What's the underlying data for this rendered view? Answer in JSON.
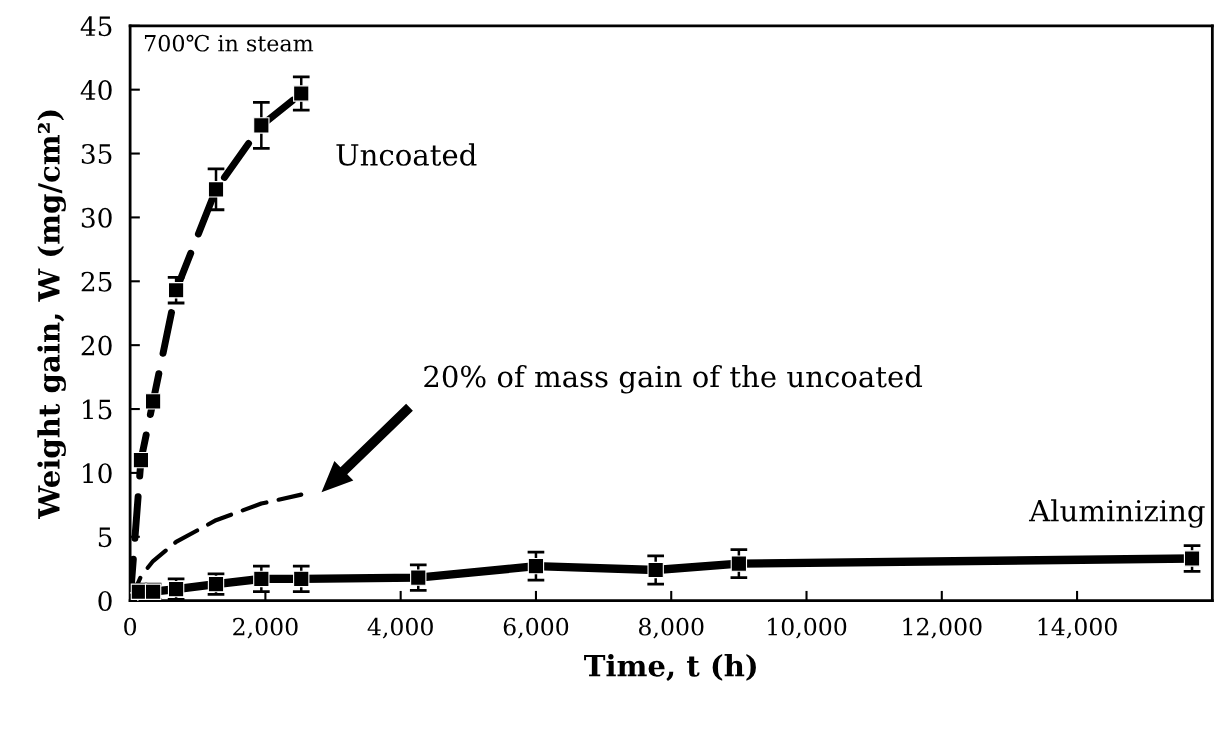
{
  "chart_data": {
    "type": "line",
    "xlabel": "Time, t (h)",
    "ylabel": "Weight gain, W (mg/cm²)",
    "xlim": [
      0,
      16000
    ],
    "ylim": [
      0,
      45
    ],
    "xticks": [
      0,
      {
        "value": 2000,
        "label": "2,000"
      },
      {
        "value": 4000,
        "label": "4,000"
      },
      {
        "value": 6000,
        "label": "6,000"
      },
      {
        "value": 8000,
        "label": "8,000"
      },
      {
        "value": 10000,
        "label": "10,000"
      },
      {
        "value": 12000,
        "label": "12,000"
      },
      {
        "value": 14000,
        "label": "14,000"
      }
    ],
    "yticks": [
      0,
      5,
      10,
      15,
      20,
      25,
      30,
      35,
      40,
      45
    ],
    "grid": false,
    "legend": false,
    "annotations": [
      "700℃ in steam",
      "20% of mass gain of the uncoated"
    ],
    "series": [
      {
        "name": "Uncoated",
        "color": "#000000",
        "line_style": "dashed",
        "marker": "square",
        "x": [
          0,
          160,
          340,
          680,
          1270,
          1940,
          2530
        ],
        "values": [
          0,
          11.0,
          15.6,
          24.3,
          32.2,
          37.2,
          39.7
        ],
        "errors": [
          null,
          null,
          null,
          1.0,
          1.6,
          1.8,
          1.3
        ]
      },
      {
        "color": "#000000",
        "line_style": "dashed",
        "marker": "none",
        "x": [
          0,
          160,
          340,
          680,
          1270,
          1940,
          2530
        ],
        "values": [
          0,
          1.9,
          3.1,
          4.6,
          6.3,
          7.6,
          8.3
        ]
      },
      {
        "name": "Aluminizing",
        "color": "#000000",
        "line_style": "solid",
        "marker": "square",
        "x": [
          0,
          130,
          340,
          680,
          1270,
          1940,
          2530,
          4260,
          6000,
          7770,
          9000,
          15700
        ],
        "values": [
          0,
          0.7,
          0.7,
          0.9,
          1.3,
          1.7,
          1.7,
          1.8,
          2.7,
          2.4,
          2.9,
          3.3
        ],
        "errors": [
          null,
          0.6,
          0.6,
          0.8,
          0.8,
          1.0,
          1.0,
          1.0,
          1.1,
          1.1,
          1.1,
          1.0
        ]
      }
    ]
  }
}
